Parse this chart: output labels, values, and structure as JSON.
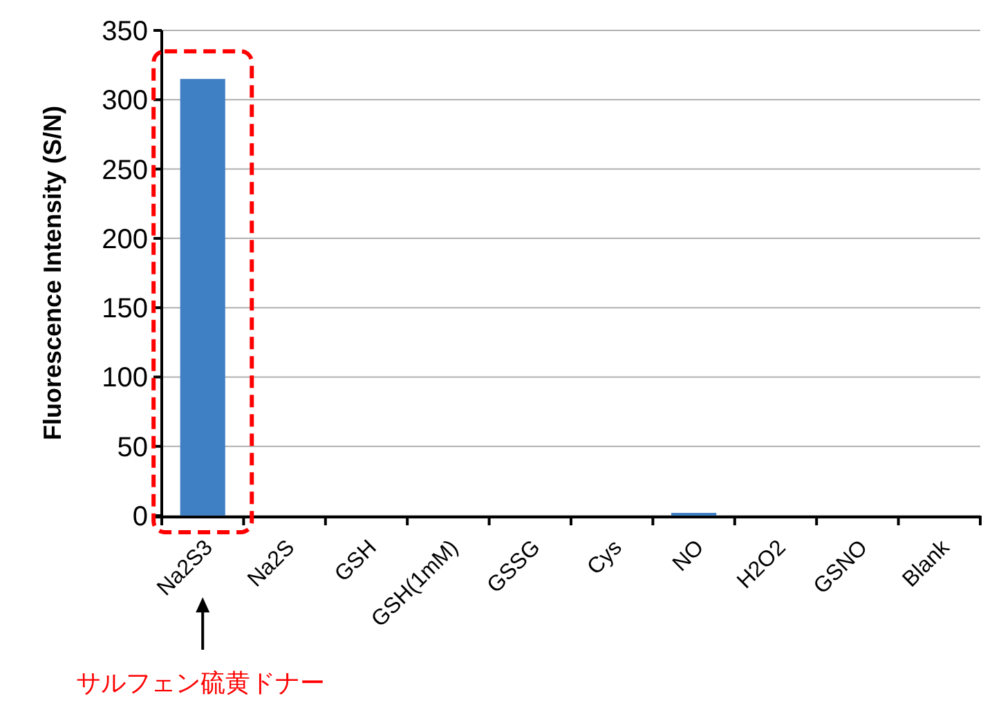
{
  "chart_data": {
    "type": "bar",
    "ylabel": "Fluorescence Intensity (S/N)",
    "categories": [
      "Na2S3",
      "Na2S",
      "GSH",
      "GSH(1mM)",
      "GSSG",
      "Cys",
      "NO",
      "H2O2",
      "GSNO",
      "Blank"
    ],
    "values": [
      315,
      0,
      0,
      0,
      0,
      0,
      2,
      0,
      0,
      0
    ],
    "color": "#3f80c4",
    "ylim": [
      0,
      350
    ],
    "yticks": [
      0,
      50,
      100,
      150,
      200,
      250,
      300,
      350
    ],
    "grid": "y",
    "annotations": [
      "サルフェン硫黄ドナー"
    ]
  }
}
